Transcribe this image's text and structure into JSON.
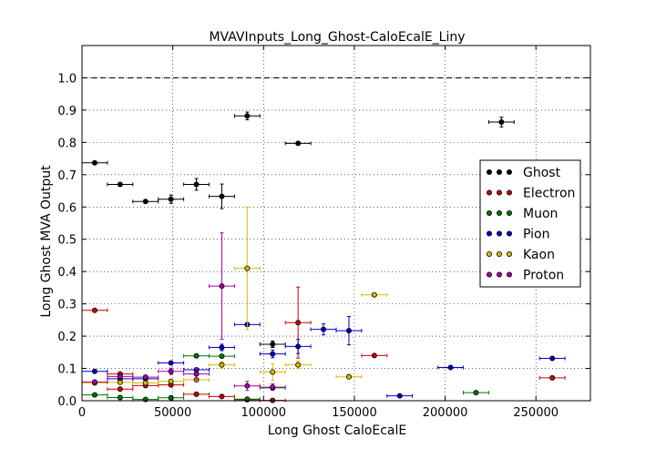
{
  "chart_data": {
    "type": "scatter",
    "title": "MVAVInputs_Long_Ghost-CaloEcalE_Liny",
    "xlabel": "Long Ghost CaloEcalE",
    "ylabel": "Long Ghost MVA Output",
    "xlim": [
      0,
      280000
    ],
    "ylim": [
      0,
      1.1
    ],
    "x_ticks": [
      0,
      50000,
      100000,
      150000,
      200000,
      250000
    ],
    "x_tick_labels": [
      "0",
      "50000",
      "100000",
      "150000",
      "200000",
      "250000"
    ],
    "y_ticks": [
      0,
      0.1,
      0.2,
      0.3,
      0.4,
      0.5,
      0.6,
      0.7,
      0.8,
      0.9,
      1.0
    ],
    "y_tick_labels": [
      "0.0",
      "0.1",
      "0.2",
      "0.3",
      "0.4",
      "0.5",
      "0.6",
      "0.7",
      "0.8",
      "0.9",
      "1.0"
    ],
    "grid": true,
    "reference_line_y": 1.0,
    "legend_position": "right",
    "x_error": 7000,
    "series": [
      {
        "name": "Ghost",
        "color": "#000000",
        "points": [
          {
            "x": 7000,
            "y": 0.737,
            "yerr": 0.004
          },
          {
            "x": 21000,
            "y": 0.67,
            "yerr": 0.004
          },
          {
            "x": 35000,
            "y": 0.617,
            "yerr": 0.005
          },
          {
            "x": 49000,
            "y": 0.624,
            "yerr": 0.013
          },
          {
            "x": 63000,
            "y": 0.67,
            "yerr": 0.018
          },
          {
            "x": 77000,
            "y": 0.633,
            "yerr": 0.038
          },
          {
            "x": 91000,
            "y": 0.882,
            "yerr": 0.012
          },
          {
            "x": 105000,
            "y": 0.175,
            "yerr": 0.01
          },
          {
            "x": 119000,
            "y": 0.797,
            "yerr": 0.004
          },
          {
            "x": 231000,
            "y": 0.863,
            "yerr": 0.015
          }
        ]
      },
      {
        "name": "Electron",
        "color": "#cc0000",
        "points": [
          {
            "x": 7000,
            "y": 0.28,
            "yerr": 0.004
          },
          {
            "x": 21000,
            "y": 0.083,
            "yerr": 0.004
          },
          {
            "x": 21000,
            "y": 0.036,
            "yerr": 0.003
          },
          {
            "x": 35000,
            "y": 0.047,
            "yerr": 0.004
          },
          {
            "x": 49000,
            "y": 0.049,
            "yerr": 0.005
          },
          {
            "x": 63000,
            "y": 0.02,
            "yerr": 0.004
          },
          {
            "x": 77000,
            "y": 0.013,
            "yerr": 0.003
          },
          {
            "x": 91000,
            "y": 0.003,
            "yerr": 0.003
          },
          {
            "x": 105000,
            "y": 0.001,
            "yerr": 0.003
          },
          {
            "x": 119000,
            "y": 0.242,
            "yerr": 0.11
          },
          {
            "x": 161000,
            "y": 0.14,
            "yerr": 0.005
          },
          {
            "x": 259000,
            "y": 0.071,
            "yerr": 0.004
          }
        ]
      },
      {
        "name": "Muon",
        "color": "#007700",
        "points": [
          {
            "x": 7000,
            "y": 0.018,
            "yerr": 0.003
          },
          {
            "x": 21000,
            "y": 0.01,
            "yerr": 0.003
          },
          {
            "x": 35000,
            "y": 0.004,
            "yerr": 0.002
          },
          {
            "x": 49000,
            "y": 0.009,
            "yerr": 0.003
          },
          {
            "x": 63000,
            "y": 0.139,
            "yerr": 0.004
          },
          {
            "x": 77000,
            "y": 0.138,
            "yerr": 0.005
          },
          {
            "x": 91000,
            "y": 0.005,
            "yerr": 0.003
          },
          {
            "x": 105000,
            "y": 0.04,
            "yerr": 0.004
          },
          {
            "x": 217000,
            "y": 0.025,
            "yerr": 0.005
          }
        ]
      },
      {
        "name": "Pion",
        "color": "#0000cc",
        "points": [
          {
            "x": 7000,
            "y": 0.091,
            "yerr": 0.004
          },
          {
            "x": 21000,
            "y": 0.068,
            "yerr": 0.004
          },
          {
            "x": 35000,
            "y": 0.068,
            "yerr": 0.004
          },
          {
            "x": 49000,
            "y": 0.117,
            "yerr": 0.005
          },
          {
            "x": 63000,
            "y": 0.096,
            "yerr": 0.005
          },
          {
            "x": 77000,
            "y": 0.165,
            "yerr": 0.01
          },
          {
            "x": 91000,
            "y": 0.236,
            "yerr": 0.005
          },
          {
            "x": 105000,
            "y": 0.145,
            "yerr": 0.012
          },
          {
            "x": 119000,
            "y": 0.168,
            "yerr": 0.022
          },
          {
            "x": 133000,
            "y": 0.221,
            "yerr": 0.017
          },
          {
            "x": 147000,
            "y": 0.217,
            "yerr": 0.044
          },
          {
            "x": 175000,
            "y": 0.015,
            "yerr": 0.004
          },
          {
            "x": 203000,
            "y": 0.103,
            "yerr": 0.004
          },
          {
            "x": 259000,
            "y": 0.131,
            "yerr": 0.004
          }
        ]
      },
      {
        "name": "Kaon",
        "color": "#ddbb00",
        "points": [
          {
            "x": 7000,
            "y": 0.055,
            "yerr": 0.004
          },
          {
            "x": 21000,
            "y": 0.057,
            "yerr": 0.004
          },
          {
            "x": 35000,
            "y": 0.055,
            "yerr": 0.004
          },
          {
            "x": 49000,
            "y": 0.06,
            "yerr": 0.004
          },
          {
            "x": 63000,
            "y": 0.065,
            "yerr": 0.005
          },
          {
            "x": 77000,
            "y": 0.111,
            "yerr": 0.01
          },
          {
            "x": 91000,
            "y": 0.41,
            "yerr": 0.19
          },
          {
            "x": 105000,
            "y": 0.089,
            "yerr": 0.025
          },
          {
            "x": 119000,
            "y": 0.111,
            "yerr": 0.012
          },
          {
            "x": 147000,
            "y": 0.074,
            "yerr": 0.005
          },
          {
            "x": 161000,
            "y": 0.328,
            "yerr": 0.005
          }
        ]
      },
      {
        "name": "Proton",
        "color": "#aa00aa",
        "points": [
          {
            "x": 7000,
            "y": 0.058,
            "yerr": 0.004
          },
          {
            "x": 21000,
            "y": 0.075,
            "yerr": 0.004
          },
          {
            "x": 35000,
            "y": 0.073,
            "yerr": 0.005
          },
          {
            "x": 49000,
            "y": 0.091,
            "yerr": 0.01
          },
          {
            "x": 63000,
            "y": 0.083,
            "yerr": 0.018
          },
          {
            "x": 77000,
            "y": 0.355,
            "yerr": 0.165
          },
          {
            "x": 91000,
            "y": 0.046,
            "yerr": 0.014
          },
          {
            "x": 105000,
            "y": 0.042,
            "yerr": 0.01
          }
        ]
      }
    ]
  }
}
